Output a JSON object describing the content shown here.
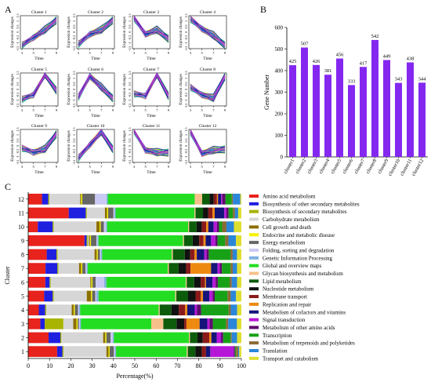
{
  "panel_labels": {
    "a": "A",
    "b": "B",
    "c": "C"
  },
  "panel_a": {
    "xlabel": "Time",
    "ylabel": "Expression changes",
    "x_ticks": [
      "3",
      "5",
      "7",
      "9"
    ],
    "y_ticks": [
      "1.5",
      "1",
      "0.5",
      "0",
      "-0.5",
      "-1",
      "-1.5"
    ],
    "line_colors": [
      "#f5a800",
      "#ffe000",
      "#b7e400",
      "#33d633",
      "#00b89c",
      "#2d55e6",
      "#1a1aaa",
      "#d63ccd"
    ],
    "clusters": [
      {
        "title": "Cluster 1",
        "profile": [
          -1.2,
          -0.5,
          0.2,
          1.1
        ]
      },
      {
        "title": "Cluster 2",
        "profile": [
          -1.1,
          -0.2,
          0.2,
          1.1
        ]
      },
      {
        "title": "Cluster 3",
        "profile": [
          1.3,
          -0.2,
          0.2,
          -0.6
        ]
      },
      {
        "title": "Cluster 4",
        "profile": [
          1.2,
          0.3,
          -0.3,
          -1.2
        ]
      },
      {
        "title": "Cluster 5",
        "profile": [
          -0.9,
          -0.5,
          1.4,
          -0.1
        ]
      },
      {
        "title": "Cluster 6",
        "profile": [
          -0.7,
          1.2,
          0.2,
          -0.8
        ]
      },
      {
        "title": "Cluster 7",
        "profile": [
          -0.4,
          -0.6,
          1.4,
          -0.6
        ]
      },
      {
        "title": "Cluster 8",
        "profile": [
          0.2,
          -0.5,
          -0.8,
          1.2
        ]
      },
      {
        "title": "Cluster 9",
        "profile": [
          -0.2,
          -0.6,
          -0.3,
          1.1
        ]
      },
      {
        "title": "Cluster 10",
        "profile": [
          -1.1,
          0.1,
          1.3,
          -0.3
        ]
      },
      {
        "title": "Cluster 11",
        "profile": [
          1.4,
          -0.4,
          -0.6,
          -0.6
        ]
      },
      {
        "title": "Cluster 12",
        "profile": [
          1.3,
          -0.7,
          -0.4,
          -0.3
        ]
      }
    ]
  },
  "chart_data": [
    {
      "type": "bar",
      "panel": "B",
      "categories": [
        "cluster1",
        "cluster2",
        "cluster3",
        "cluster4",
        "cluster5",
        "cluster6",
        "cluster7",
        "cluster8",
        "cluster9",
        "cluster10",
        "cluster11",
        "cluster12"
      ],
      "values": [
        425,
        507,
        426,
        381,
        456,
        333,
        417,
        542,
        449,
        343,
        438,
        344
      ],
      "value_labels": [
        "425",
        "507",
        "426",
        "381",
        "456",
        "333",
        "417",
        "542",
        "449",
        "343",
        "438",
        "344"
      ],
      "ylabel": "Gene Number",
      "ylim": [
        0,
        600
      ],
      "yticks": [
        "0",
        "100",
        "200",
        "300",
        "400",
        "500",
        "600"
      ],
      "bar_color": "#8428f0"
    },
    {
      "type": "bar",
      "orientation": "horizontal-stacked-percent",
      "panel": "C",
      "xlabel": "Percentage(%)",
      "ylabel": "Cluster",
      "xlim": [
        0,
        100
      ],
      "xticks": [
        "0",
        "10",
        "20",
        "30",
        "40",
        "50",
        "60",
        "70",
        "80",
        "90",
        "100"
      ],
      "clusters": [
        "1",
        "2",
        "3",
        "4",
        "5",
        "6",
        "7",
        "8",
        "9",
        "10",
        "11",
        "12"
      ],
      "categories": [
        {
          "name": "Amino acid metabolism",
          "color": "#e8221c"
        },
        {
          "name": "Biosynthesis of other secondary metabolites",
          "color": "#1f1fe0"
        },
        {
          "name": "Biosynthesis of secondary metabolites",
          "color": "#a8b400"
        },
        {
          "name": "Carbohydrate metabolism",
          "color": "#d6d6d6"
        },
        {
          "name": "Cell growth and death",
          "color": "#8c6f00"
        },
        {
          "name": "Endocrine and metabolic disease",
          "color": "#f3f300"
        },
        {
          "name": "Energy metabolism",
          "color": "#666666"
        },
        {
          "name": "Folding, sorting and degradation",
          "color": "#c9c9f4"
        },
        {
          "name": "Genetic Information Processing",
          "color": "#7fb0e0"
        },
        {
          "name": "Global and overview maps",
          "color": "#22dd22"
        },
        {
          "name": "Glycan biosynthesis and metabolism",
          "color": "#f7c08a"
        },
        {
          "name": "Lipid metabolism",
          "color": "#0c5c0c"
        },
        {
          "name": "Nucleotide metabolism",
          "color": "#111111"
        },
        {
          "name": "Membrane transport",
          "color": "#8a1a1a"
        },
        {
          "name": "Replication and repair",
          "color": "#ee8a10"
        },
        {
          "name": "Metabolism of cofactors and vitamins",
          "color": "#14147a"
        },
        {
          "name": "Signal transduction",
          "color": "#b617d6"
        },
        {
          "name": "Metabolism of other amino acids",
          "color": "#5e0a6e"
        },
        {
          "name": "Transcription",
          "color": "#17a117"
        },
        {
          "name": "Metabolism of terpenoids and polyketides",
          "color": "#8a6a34"
        },
        {
          "name": "Translation",
          "color": "#2a86d8"
        },
        {
          "name": "Transport and catabolism",
          "color": "#dede30"
        }
      ],
      "percentages": {
        "1": [
          13.5,
          2.5,
          0.5,
          20.0,
          1.0,
          0.5,
          2.0,
          0.5,
          0.5,
          33.0,
          0.5,
          3.5,
          3.0,
          2.0,
          0,
          2.0,
          11.0,
          0.5,
          0.5,
          1.0,
          0.5,
          1.0
        ],
        "2": [
          9.5,
          5.5,
          0.5,
          19.5,
          1.0,
          0.5,
          2.0,
          1.0,
          0.5,
          35.0,
          0.5,
          3.5,
          2.5,
          3.0,
          1.0,
          2.5,
          2.0,
          1.0,
          3.5,
          0.5,
          2.5,
          2.0
        ],
        "3": [
          5.5,
          2.0,
          8.5,
          4.5,
          1.5,
          0.5,
          0.5,
          0.5,
          0.5,
          32.0,
          5.5,
          6.0,
          3.5,
          1.0,
          6.0,
          3.5,
          1.0,
          1.5,
          6.0,
          1.0,
          4.0,
          2.0
        ],
        "4": [
          5.0,
          3.0,
          0.5,
          12.0,
          1.0,
          0.5,
          1.5,
          0.5,
          0.5,
          37.0,
          0.5,
          5.5,
          3.5,
          3.0,
          1.0,
          3.5,
          1.0,
          2.0,
          13.0,
          1.0,
          3.0,
          2.0
        ],
        "5": [
          7.5,
          4.0,
          0.5,
          15.5,
          2.0,
          0.5,
          1.5,
          0.5,
          1.0,
          36.0,
          0.5,
          5.5,
          3.5,
          2.5,
          1.0,
          3.0,
          1.5,
          1.0,
          6.0,
          1.5,
          2.5,
          2.5
        ],
        "6": [
          8.0,
          2.0,
          0.5,
          18.5,
          0.5,
          0.5,
          1.5,
          4.0,
          1.0,
          37.0,
          0.5,
          3.5,
          3.0,
          2.0,
          0.5,
          3.0,
          1.5,
          1.0,
          5.5,
          1.0,
          2.5,
          2.0
        ],
        "7": [
          8.0,
          5.5,
          0.5,
          9.5,
          1.0,
          0.5,
          1.5,
          0.5,
          0.5,
          37.0,
          0.5,
          4.5,
          3.5,
          2.0,
          9.5,
          3.0,
          1.0,
          1.0,
          4.0,
          1.0,
          2.0,
          2.0
        ],
        "8": [
          8.5,
          4.5,
          0.5,
          17.0,
          1.0,
          0.5,
          1.0,
          0.5,
          0.5,
          32.0,
          0.5,
          5.5,
          2.5,
          2.0,
          1.0,
          3.5,
          1.0,
          1.0,
          10.0,
          1.0,
          2.0,
          2.0
        ],
        "9": [
          26.0,
          1.0,
          0.5,
          0.5,
          0.5,
          0.5,
          2.5,
          0.5,
          0.5,
          39.0,
          0.5,
          4.0,
          3.0,
          2.0,
          1.0,
          2.5,
          2.0,
          1.0,
          3.5,
          1.5,
          3.5,
          2.5
        ],
        "10": [
          4.5,
          7.0,
          0.5,
          20.0,
          1.5,
          0.5,
          1.5,
          1.0,
          0.5,
          38.0,
          0.5,
          3.5,
          2.5,
          2.0,
          1.0,
          2.5,
          1.5,
          1.0,
          1.5,
          2.0,
          3.5,
          3.5
        ],
        "11": [
          19.0,
          8.0,
          0.5,
          8.5,
          1.0,
          0.5,
          2.5,
          0.5,
          0.5,
          37.0,
          0.5,
          3.5,
          2.5,
          2.0,
          1.0,
          4.5,
          1.0,
          1.0,
          2.0,
          1.0,
          1.5,
          1.5
        ],
        "12": [
          6.5,
          3.0,
          0.5,
          14.5,
          0.5,
          0.5,
          6.0,
          5.5,
          0.5,
          41.0,
          3.5,
          3.5,
          2.0,
          1.5,
          0.5,
          1.5,
          0.5,
          1.5,
          3.0,
          0.5,
          3.5,
          0.5
        ]
      }
    }
  ]
}
